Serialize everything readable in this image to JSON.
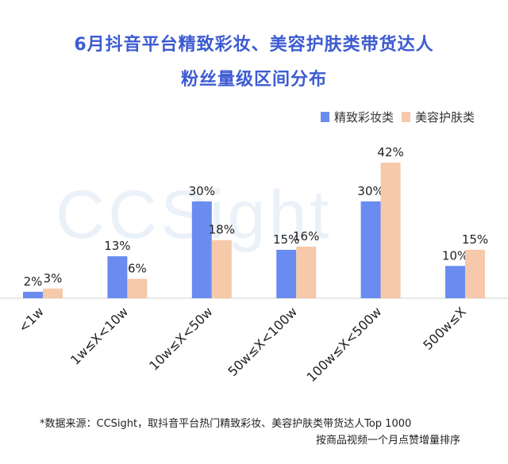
{
  "title_line1": "6月抖音平台精致彩妆、美容护肤类带货达人",
  "title_line2": "粉丝量级区间分布",
  "watermark": "CCSight",
  "footnote_line1": "*数据来源：CCSight，取抖音平台热门精致彩妆、美容护肤类带货达人Top 1000",
  "footnote_line2": "按商品视频一个月点赞增量排序",
  "colors": {
    "series1": "#6a8cf0",
    "series2": "#f6c9ab",
    "title": "#3d5bd1"
  },
  "chart_data": {
    "type": "bar",
    "title": "6月抖音平台精致彩妆、美容护肤类带货达人粉丝量级区间分布",
    "categories": [
      "<1w",
      "1w≤X<10w",
      "10w≤X<50w",
      "50w≤X<100w",
      "100w≤X<500w",
      "500w≤X"
    ],
    "series": [
      {
        "name": "精致彩妆类",
        "values": [
          2,
          13,
          30,
          15,
          30,
          10
        ],
        "labels": [
          "2%",
          "13%",
          "30%",
          "15%",
          "30%",
          "10%"
        ]
      },
      {
        "name": "美容护肤类",
        "values": [
          3,
          6,
          18,
          16,
          42,
          15
        ],
        "labels": [
          "3%",
          "6%",
          "18%",
          "16%",
          "42%",
          "15%"
        ]
      }
    ],
    "ylim": [
      0,
      45
    ],
    "legend": "top-right",
    "grid": false
  }
}
